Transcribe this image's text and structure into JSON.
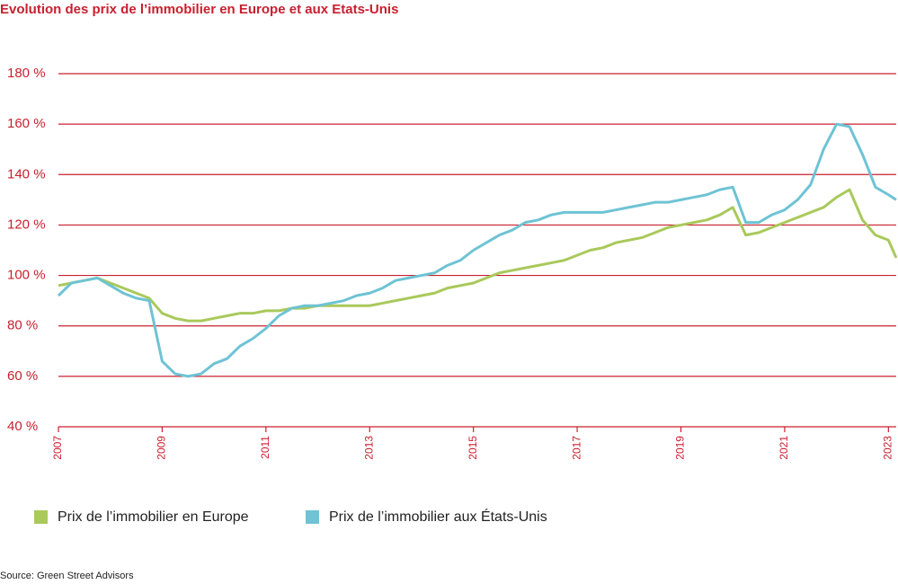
{
  "chart_data": {
    "type": "line",
    "title": "Evolution des prix de l’immobilier en Europe et aux Etats-Unis",
    "source": "Source: Green Street Advisors",
    "x": [
      2007,
      2007.25,
      2007.5,
      2007.75,
      2008,
      2008.25,
      2008.5,
      2008.75,
      2009,
      2009.25,
      2009.5,
      2009.75,
      2010,
      2010.25,
      2010.5,
      2010.75,
      2011,
      2011.25,
      2011.5,
      2011.75,
      2012,
      2012.25,
      2012.5,
      2012.75,
      2013,
      2013.25,
      2013.5,
      2013.75,
      2014,
      2014.25,
      2014.5,
      2014.75,
      2015,
      2015.25,
      2015.5,
      2015.75,
      2016,
      2016.25,
      2016.5,
      2016.75,
      2017,
      2017.25,
      2017.5,
      2017.75,
      2018,
      2018.25,
      2018.5,
      2018.75,
      2019,
      2019.25,
      2019.5,
      2019.75,
      2020,
      2020.25,
      2020.5,
      2020.75,
      2021,
      2021.25,
      2021.5,
      2021.75,
      2022,
      2022.25,
      2022.5,
      2022.75,
      2023,
      2023.15
    ],
    "series": [
      {
        "name": "Prix de l’immobilier en Europe",
        "color": "#a9c95b",
        "values": [
          96,
          97,
          98,
          99,
          97,
          95,
          93,
          91,
          85,
          83,
          82,
          82,
          83,
          84,
          85,
          85,
          86,
          86,
          87,
          87,
          88,
          88,
          88,
          88,
          88,
          89,
          90,
          91,
          92,
          93,
          95,
          96,
          97,
          99,
          101,
          102,
          103,
          104,
          105,
          106,
          108,
          110,
          111,
          113,
          114,
          115,
          117,
          119,
          120,
          121,
          122,
          124,
          127,
          116,
          117,
          119,
          121,
          123,
          125,
          127,
          131,
          134,
          122,
          116,
          114,
          107
        ]
      },
      {
        "name": "Prix de l’immobilier aux États-Unis",
        "color": "#6ec3d4",
        "values": [
          92,
          97,
          98,
          99,
          96,
          93,
          91,
          90,
          66,
          61,
          60,
          61,
          65,
          67,
          72,
          75,
          79,
          84,
          87,
          88,
          88,
          89,
          90,
          92,
          93,
          95,
          98,
          99,
          100,
          101,
          104,
          106,
          110,
          113,
          116,
          118,
          121,
          122,
          124,
          125,
          125,
          125,
          125,
          126,
          127,
          128,
          129,
          129,
          130,
          131,
          132,
          134,
          135,
          121,
          121,
          124,
          126,
          130,
          136,
          150,
          160,
          159,
          148,
          135,
          132,
          130
        ]
      }
    ],
    "xlim": [
      2007,
      2023.15
    ],
    "xticks": [
      2007,
      2009,
      2011,
      2013,
      2015,
      2017,
      2019,
      2021,
      2023
    ],
    "ylim": [
      40,
      180
    ],
    "yticks": [
      {
        "value": 40,
        "label": "40 %"
      },
      {
        "value": 60,
        "label": "60 %"
      },
      {
        "value": 80,
        "label": "80 %"
      },
      {
        "value": 100,
        "label": "100 %"
      },
      {
        "value": 120,
        "label": "120 %"
      },
      {
        "value": 140,
        "label": "140 %"
      },
      {
        "value": 160,
        "label": "160 %"
      },
      {
        "value": 180,
        "label": "180 %"
      }
    ],
    "grid": true,
    "legend": "bottom"
  }
}
